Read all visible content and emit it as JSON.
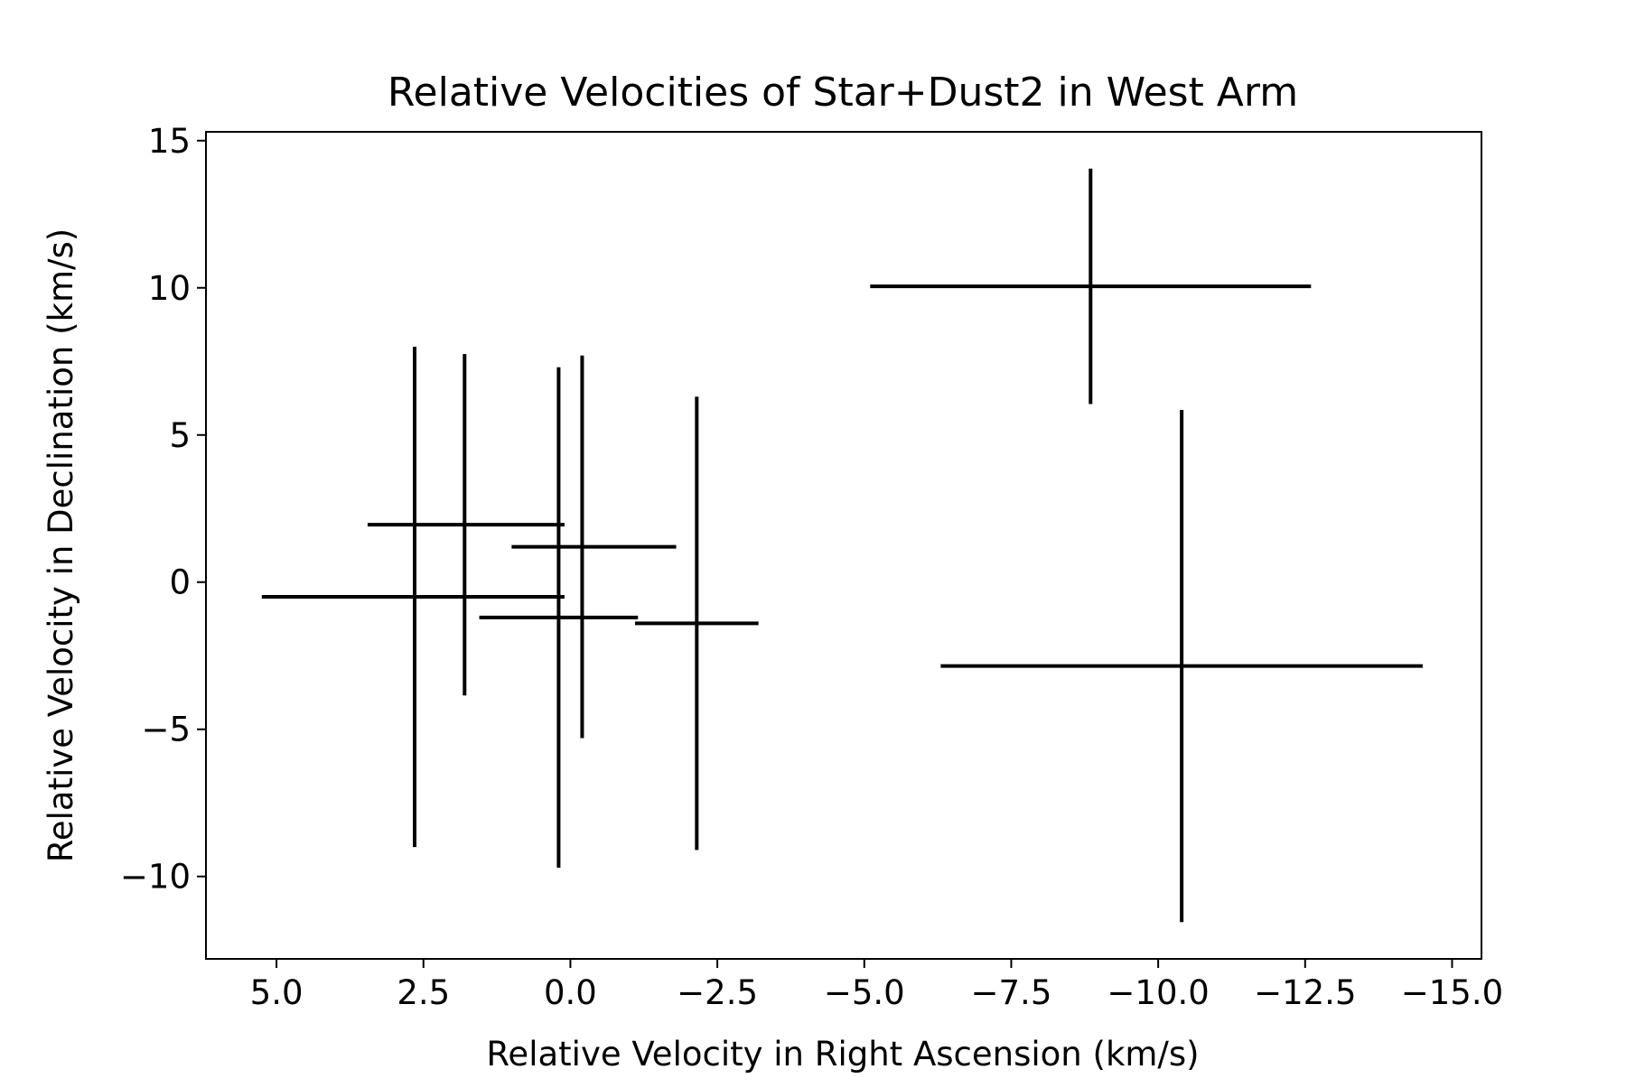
{
  "chart_data": {
    "type": "scatter",
    "title": "Relative Velocities of Star+Dust2 in West Arm",
    "xlabel": "Relative Velocity in Right Ascension (km/s)",
    "ylabel": "Relative Velocity in Declination (km/s)",
    "xlim": [
      6.2,
      -15.5
    ],
    "ylim": [
      -12.8,
      15.3
    ],
    "x_inverted": true,
    "grid": false,
    "legend": "none",
    "marker": "none",
    "color": "#000000",
    "x_ticks": [
      {
        "value": 5.0,
        "label": "5.0"
      },
      {
        "value": 2.5,
        "label": "2.5"
      },
      {
        "value": 0.0,
        "label": "0.0"
      },
      {
        "value": -2.5,
        "label": "−2.5"
      },
      {
        "value": -5.0,
        "label": "−5.0"
      },
      {
        "value": -7.5,
        "label": "−7.5"
      },
      {
        "value": -10.0,
        "label": "−10.0"
      },
      {
        "value": -12.5,
        "label": "−12.5"
      },
      {
        "value": -15.0,
        "label": "−15.0"
      }
    ],
    "y_ticks": [
      {
        "value": 15,
        "label": "15"
      },
      {
        "value": 10,
        "label": "10"
      },
      {
        "value": 5,
        "label": "5"
      },
      {
        "value": 0,
        "label": "0"
      },
      {
        "value": -5,
        "label": "−5"
      },
      {
        "value": -10,
        "label": "−10"
      }
    ],
    "points": [
      {
        "x": 2.65,
        "y": -0.5,
        "xerr": [
          2.6,
          2.55
        ],
        "yerr": [
          8.5,
          8.5
        ]
      },
      {
        "x": 1.8,
        "y": 1.95,
        "xerr": [
          1.65,
          1.7
        ],
        "yerr": [
          5.8,
          5.8
        ]
      },
      {
        "x": 0.2,
        "y": -1.2,
        "xerr": [
          1.35,
          1.35
        ],
        "yerr": [
          8.5,
          8.5
        ]
      },
      {
        "x": -0.2,
        "y": 1.2,
        "xerr": [
          1.2,
          1.6
        ],
        "yerr": [
          6.5,
          6.5
        ]
      },
      {
        "x": -2.15,
        "y": -1.4,
        "xerr": [
          1.05,
          1.05
        ],
        "yerr": [
          7.7,
          7.7
        ]
      },
      {
        "x": -8.85,
        "y": 10.05,
        "xerr": [
          3.75,
          3.75
        ],
        "yerr": [
          4.0,
          4.0
        ]
      },
      {
        "x": -10.4,
        "y": -2.85,
        "xerr": [
          4.1,
          4.1
        ],
        "yerr": [
          8.7,
          8.7
        ]
      }
    ]
  }
}
